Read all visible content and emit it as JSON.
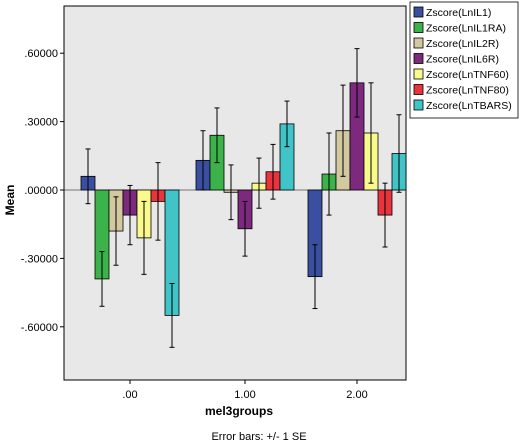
{
  "chart_data": {
    "type": "bar",
    "xlabel": "mel3groups",
    "ylabel": "Mean",
    "footer": "Error bars: +/- 1 SE",
    "categories": [
      ".00",
      "1.00",
      "2.00"
    ],
    "ylim": [
      -0.85,
      0.85
    ],
    "yticks": [
      0.6,
      0.3,
      0.0,
      -0.3,
      -0.6
    ],
    "ytick_labels": [
      ".60000",
      ".30000",
      ".00000",
      "-.30000",
      "-.60000"
    ],
    "grid": false,
    "legend_position": "right",
    "background_color": "#e8e8e8",
    "series": [
      {
        "name": "Zscore(LnIL1)",
        "color": "#3a4fa0",
        "values": [
          0.06,
          0.13,
          -0.38
        ],
        "errors": [
          0.12,
          0.13,
          0.14
        ]
      },
      {
        "name": "Zscore(LnIL1RA)",
        "color": "#3cb34a",
        "values": [
          -0.39,
          0.24,
          0.07
        ],
        "errors": [
          0.12,
          0.12,
          0.18
        ]
      },
      {
        "name": "Zscore(LnIL2R)",
        "color": "#d3c9a0",
        "values": [
          -0.18,
          -0.01,
          0.26
        ],
        "errors": [
          0.15,
          0.12,
          0.2
        ]
      },
      {
        "name": "Zscore(LnIL6R)",
        "color": "#7d2a7e",
        "values": [
          -0.11,
          -0.17,
          0.47
        ],
        "errors": [
          0.13,
          0.12,
          0.15
        ]
      },
      {
        "name": "Zscore(LnTNF60)",
        "color": "#fafa8c",
        "values": [
          -0.21,
          0.03,
          0.25
        ],
        "errors": [
          0.16,
          0.11,
          0.22
        ]
      },
      {
        "name": "Zscore(LnTNF80)",
        "color": "#e8343c",
        "values": [
          -0.05,
          0.08,
          -0.11
        ],
        "errors": [
          0.17,
          0.12,
          0.14
        ]
      },
      {
        "name": "Zscore(LnTBARS)",
        "color": "#40c4c8",
        "values": [
          -0.55,
          0.29,
          0.16
        ],
        "errors": [
          0.14,
          0.1,
          0.17
        ]
      }
    ]
  }
}
